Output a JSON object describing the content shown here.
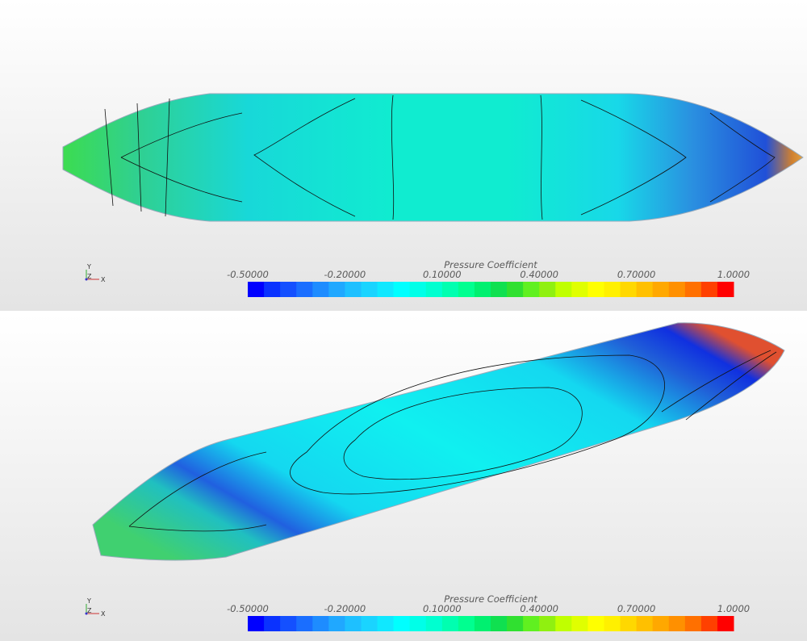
{
  "panels": [
    {
      "colorbar": {
        "title": "Pressure Coefficient",
        "ticks": [
          "-0.50000",
          "-0.20000",
          "0.10000",
          "0.40000",
          "0.70000",
          "1.0000"
        ],
        "colors": [
          "#0000ff",
          "#0a32ff",
          "#1450ff",
          "#1a6eff",
          "#1e8cff",
          "#20a8ff",
          "#1ec0ff",
          "#1ad4ff",
          "#10e8ff",
          "#00ffff",
          "#00ffe8",
          "#00ffd0",
          "#00ffb0",
          "#00ff90",
          "#00f070",
          "#10e050",
          "#30e030",
          "#60f020",
          "#90f010",
          "#c0ff00",
          "#e0ff00",
          "#ffff00",
          "#fff000",
          "#ffd800",
          "#ffc000",
          "#ffa800",
          "#ff9000",
          "#ff7000",
          "#ff4000",
          "#ff0000"
        ]
      },
      "triad": {
        "y": "Y",
        "z": "Z",
        "x": "X"
      }
    },
    {
      "colorbar": {
        "title": "Pressure Coefficient",
        "ticks": [
          "-0.50000",
          "-0.20000",
          "0.10000",
          "0.40000",
          "0.70000",
          "1.0000"
        ],
        "colors": [
          "#0000ff",
          "#0a32ff",
          "#1450ff",
          "#1a6eff",
          "#1e8cff",
          "#20a8ff",
          "#1ec0ff",
          "#1ad4ff",
          "#10e8ff",
          "#00ffff",
          "#00ffe8",
          "#00ffd0",
          "#00ffb0",
          "#00ff90",
          "#00f070",
          "#10e050",
          "#30e030",
          "#60f020",
          "#90f010",
          "#c0ff00",
          "#e0ff00",
          "#ffff00",
          "#fff000",
          "#ffd800",
          "#ffc000",
          "#ffa800",
          "#ff9000",
          "#ff7000",
          "#ff4000",
          "#ff0000"
        ]
      },
      "triad": {
        "y": "Y",
        "z": "Z",
        "x": "X"
      }
    }
  ]
}
